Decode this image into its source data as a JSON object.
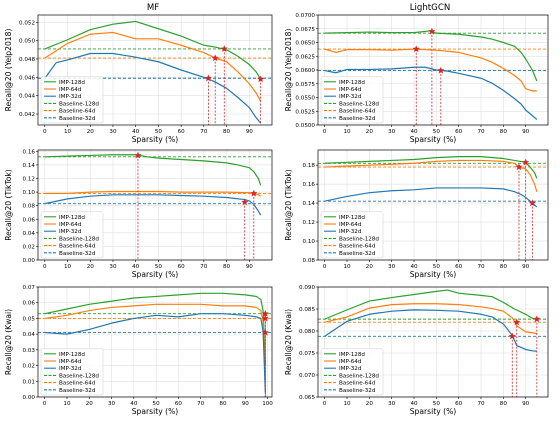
{
  "column_titles": [
    "MF",
    "LightGCN"
  ],
  "colors": {
    "imp128": "#2ca02c",
    "imp64": "#ff7f0e",
    "imp32": "#1f77b4",
    "marker": "#d62728",
    "grid": "#d9d9d9"
  },
  "chart_data": [
    {
      "type": "line",
      "column": "MF",
      "row": 0,
      "xlabel": "Sparsity (%)",
      "ylabel": "Recall@20 (Yelp2018)",
      "xlim": [
        -3,
        100
      ],
      "ylim": [
        0.0408,
        0.0528
      ],
      "xticks": [
        0,
        10,
        20,
        30,
        40,
        50,
        60,
        70,
        80,
        90
      ],
      "yticks": [
        0.042,
        0.044,
        0.046,
        0.048,
        0.05,
        0.052
      ],
      "yticklabels": [
        "0.042",
        "0.044",
        "0.046",
        "0.048",
        "0.050",
        "0.052"
      ],
      "legend": "bottom-left",
      "series": [
        {
          "name": "IMP-128d",
          "color": "#2ca02c",
          "x": [
            0,
            10,
            20,
            30,
            40,
            50,
            60,
            70,
            75,
            80,
            85,
            90,
            93,
            95
          ],
          "y": [
            0.0491,
            0.0501,
            0.0512,
            0.0518,
            0.0521,
            0.0513,
            0.0505,
            0.0495,
            0.0493,
            0.049,
            0.0483,
            0.0474,
            0.0466,
            0.0458
          ]
        },
        {
          "name": "IMP-64d",
          "color": "#ff7f0e",
          "x": [
            0,
            10,
            20,
            30,
            40,
            50,
            60,
            70,
            75,
            80,
            85,
            90,
            93,
            95
          ],
          "y": [
            0.0481,
            0.0497,
            0.0507,
            0.0509,
            0.0502,
            0.0502,
            0.0495,
            0.0487,
            0.0481,
            0.0477,
            0.0466,
            0.0453,
            0.0443,
            0.0434
          ]
        },
        {
          "name": "IMP-32d",
          "color": "#1f77b4",
          "x": [
            0,
            5,
            10,
            20,
            30,
            40,
            50,
            60,
            70,
            75,
            80,
            85,
            90,
            93,
            95
          ],
          "y": [
            0.0459,
            0.0476,
            0.0479,
            0.0486,
            0.0486,
            0.0482,
            0.0477,
            0.0468,
            0.046,
            0.0455,
            0.0448,
            0.0438,
            0.0427,
            0.0416,
            0.041
          ]
        }
      ],
      "baselines": [
        {
          "name": "Baseline-128d",
          "color": "#2ca02c",
          "y": 0.0491
        },
        {
          "name": "Baseline-64d",
          "color": "#ff7f0e",
          "y": 0.0481
        },
        {
          "name": "Baseline-32d",
          "color": "#1f77b4",
          "y": 0.0459
        }
      ],
      "markers": [
        {
          "x": 79,
          "y": 0.0491
        },
        {
          "x": 75,
          "y": 0.0481
        },
        {
          "x": 72,
          "y": 0.0459
        },
        {
          "x": 95,
          "y": 0.0458
        }
      ]
    },
    {
      "type": "line",
      "column": "LightGCN",
      "row": 0,
      "xlabel": "Sparsity (%)",
      "ylabel": "Recall@20 (Yelp2018)",
      "xlim": [
        -3,
        100
      ],
      "ylim": [
        0.05,
        0.07
      ],
      "xticks": [
        0,
        10,
        20,
        30,
        40,
        50,
        60,
        70,
        80,
        90
      ],
      "yticks": [
        0.05,
        0.0525,
        0.055,
        0.0575,
        0.06,
        0.0625,
        0.065,
        0.0675,
        0.07
      ],
      "yticklabels": [
        "0.0500",
        "0.0525",
        "0.0550",
        "0.0575",
        "0.0600",
        "0.0625",
        "0.0650",
        "0.0675",
        "0.0700"
      ],
      "legend": "bottom-left",
      "series": [
        {
          "name": "IMP-128d",
          "color": "#2ca02c",
          "x": [
            0,
            10,
            20,
            30,
            40,
            47,
            50,
            60,
            70,
            75,
            80,
            85,
            88,
            90,
            93,
            95
          ],
          "y": [
            0.0667,
            0.0668,
            0.0669,
            0.0668,
            0.0668,
            0.0671,
            0.0667,
            0.0665,
            0.066,
            0.0656,
            0.065,
            0.0643,
            0.0632,
            0.062,
            0.06,
            0.058
          ]
        },
        {
          "name": "IMP-64d",
          "color": "#ff7f0e",
          "x": [
            0,
            5,
            10,
            20,
            30,
            40,
            50,
            60,
            70,
            75,
            80,
            85,
            88,
            90,
            93,
            95
          ],
          "y": [
            0.0638,
            0.0632,
            0.0637,
            0.0637,
            0.0636,
            0.0638,
            0.0636,
            0.0632,
            0.0622,
            0.0614,
            0.0603,
            0.059,
            0.058,
            0.0566,
            0.0562,
            0.0562
          ]
        },
        {
          "name": "IMP-32d",
          "color": "#1f77b4",
          "x": [
            0,
            5,
            10,
            20,
            30,
            40,
            45,
            50,
            55,
            60,
            70,
            75,
            80,
            85,
            88,
            90,
            93,
            95
          ],
          "y": [
            0.0599,
            0.0595,
            0.0601,
            0.0601,
            0.0602,
            0.0605,
            0.0605,
            0.06,
            0.0598,
            0.0594,
            0.0585,
            0.0576,
            0.0563,
            0.0548,
            0.0538,
            0.0527,
            0.0517,
            0.051
          ]
        }
      ],
      "baselines": [
        {
          "name": "Baseline-128d",
          "color": "#2ca02c",
          "y": 0.0667
        },
        {
          "name": "Baseline-64d",
          "color": "#ff7f0e",
          "y": 0.0638
        },
        {
          "name": "Baseline-32d",
          "color": "#1f77b4",
          "y": 0.0599
        }
      ],
      "markers": [
        {
          "x": 48,
          "y": 0.067
        },
        {
          "x": 41,
          "y": 0.0638
        },
        {
          "x": 52,
          "y": 0.0599
        }
      ]
    },
    {
      "type": "line",
      "column": "MF",
      "row": 1,
      "xlabel": "Sparsity (%)",
      "ylabel": "Recall@20 (TikTok)",
      "xlim": [
        -3,
        100
      ],
      "ylim": [
        0.0,
        0.162
      ],
      "xticks": [
        0,
        10,
        20,
        30,
        40,
        50,
        60,
        70,
        80,
        90
      ],
      "yticks": [
        0.0,
        0.02,
        0.04,
        0.06,
        0.08,
        0.1,
        0.12,
        0.14,
        0.16
      ],
      "yticklabels": [
        "0.00",
        "0.02",
        "0.04",
        "0.06",
        "0.08",
        "0.10",
        "0.12",
        "0.14",
        "0.16"
      ],
      "legend": "bottom-left",
      "series": [
        {
          "name": "IMP-128d",
          "color": "#2ca02c",
          "x": [
            0,
            10,
            20,
            30,
            40,
            45,
            50,
            60,
            70,
            80,
            85,
            90,
            92,
            94,
            95
          ],
          "y": [
            0.152,
            0.153,
            0.154,
            0.155,
            0.155,
            0.152,
            0.15,
            0.148,
            0.146,
            0.143,
            0.14,
            0.136,
            0.13,
            0.12,
            0.11
          ]
        },
        {
          "name": "IMP-64d",
          "color": "#ff7f0e",
          "x": [
            0,
            10,
            20,
            30,
            40,
            50,
            60,
            70,
            80,
            90,
            92,
            94,
            95
          ],
          "y": [
            0.098,
            0.098,
            0.1,
            0.101,
            0.101,
            0.101,
            0.1,
            0.1,
            0.1,
            0.099,
            0.098,
            0.096,
            0.094
          ]
        },
        {
          "name": "IMP-32d",
          "color": "#1f77b4",
          "x": [
            0,
            10,
            20,
            30,
            40,
            50,
            60,
            70,
            80,
            88,
            90,
            92,
            94,
            95
          ],
          "y": [
            0.083,
            0.09,
            0.094,
            0.096,
            0.096,
            0.096,
            0.095,
            0.094,
            0.092,
            0.089,
            0.087,
            0.082,
            0.072,
            0.066
          ]
        }
      ],
      "baselines": [
        {
          "name": "Baseline-128d",
          "color": "#2ca02c",
          "y": 0.152
        },
        {
          "name": "Baseline-64d",
          "color": "#ff7f0e",
          "y": 0.098
        },
        {
          "name": "Baseline-32d",
          "color": "#1f77b4",
          "y": 0.083
        }
      ],
      "markers": [
        {
          "x": 41,
          "y": 0.154
        },
        {
          "x": 92,
          "y": 0.098
        },
        {
          "x": 88,
          "y": 0.085
        }
      ]
    },
    {
      "type": "line",
      "column": "LightGCN",
      "row": 1,
      "xlabel": "Sparsity (%)",
      "ylabel": "Recall@20 (TikTok)",
      "xlim": [
        -3,
        100
      ],
      "ylim": [
        0.08,
        0.196
      ],
      "xticks": [
        0,
        10,
        20,
        30,
        40,
        50,
        60,
        70,
        80,
        90
      ],
      "yticks": [
        0.08,
        0.1,
        0.12,
        0.14,
        0.16,
        0.18
      ],
      "yticklabels": [
        "0.08",
        "0.10",
        "0.12",
        "0.14",
        "0.16",
        "0.18"
      ],
      "legend": "bottom-left",
      "series": [
        {
          "name": "IMP-128d",
          "color": "#2ca02c",
          "x": [
            0,
            10,
            20,
            30,
            40,
            50,
            60,
            70,
            80,
            85,
            90,
            92,
            94,
            95
          ],
          "y": [
            0.182,
            0.183,
            0.184,
            0.185,
            0.186,
            0.188,
            0.189,
            0.189,
            0.187,
            0.185,
            0.183,
            0.178,
            0.172,
            0.166
          ]
        },
        {
          "name": "IMP-64d",
          "color": "#ff7f0e",
          "x": [
            0,
            10,
            20,
            30,
            40,
            50,
            60,
            70,
            80,
            85,
            87,
            90,
            92,
            94,
            95
          ],
          "y": [
            0.178,
            0.179,
            0.18,
            0.181,
            0.182,
            0.184,
            0.185,
            0.185,
            0.184,
            0.182,
            0.178,
            0.176,
            0.17,
            0.16,
            0.152
          ]
        },
        {
          "name": "IMP-32d",
          "color": "#1f77b4",
          "x": [
            0,
            10,
            20,
            30,
            40,
            50,
            60,
            70,
            80,
            85,
            88,
            90,
            92,
            94,
            95
          ],
          "y": [
            0.142,
            0.147,
            0.151,
            0.153,
            0.154,
            0.156,
            0.156,
            0.156,
            0.155,
            0.152,
            0.149,
            0.146,
            0.142,
            0.138,
            0.136
          ]
        }
      ],
      "baselines": [
        {
          "name": "Baseline-128d",
          "color": "#2ca02c",
          "y": 0.182
        },
        {
          "name": "Baseline-64d",
          "color": "#ff7f0e",
          "y": 0.178
        },
        {
          "name": "Baseline-32d",
          "color": "#1f77b4",
          "y": 0.142
        }
      ],
      "markers": [
        {
          "x": 90,
          "y": 0.183
        },
        {
          "x": 87,
          "y": 0.178
        },
        {
          "x": 93,
          "y": 0.14
        }
      ]
    },
    {
      "type": "line",
      "column": "MF",
      "row": 2,
      "xlabel": "Sparsity (%)",
      "ylabel": "Recall@20 (Kwai)",
      "xlim": [
        -3,
        102
      ],
      "ylim": [
        0.0,
        0.07
      ],
      "xticks": [
        0,
        10,
        20,
        30,
        40,
        50,
        60,
        70,
        80,
        90,
        100
      ],
      "yticks": [
        0.0,
        0.01,
        0.02,
        0.03,
        0.04,
        0.05,
        0.06,
        0.07
      ],
      "yticklabels": [
        "0.00",
        "0.01",
        "0.02",
        "0.03",
        "0.04",
        "0.05",
        "0.06",
        "0.07"
      ],
      "legend": "bottom-left",
      "series": [
        {
          "name": "IMP-128d",
          "color": "#2ca02c",
          "x": [
            0,
            10,
            20,
            30,
            40,
            50,
            60,
            70,
            80,
            90,
            95,
            97,
            98,
            99
          ],
          "y": [
            0.053,
            0.056,
            0.059,
            0.061,
            0.063,
            0.064,
            0.065,
            0.066,
            0.066,
            0.065,
            0.064,
            0.062,
            0.055,
            0.02
          ]
        },
        {
          "name": "IMP-64d",
          "color": "#ff7f0e",
          "x": [
            0,
            10,
            20,
            30,
            40,
            50,
            60,
            70,
            80,
            90,
            95,
            97,
            98,
            99
          ],
          "y": [
            0.05,
            0.052,
            0.055,
            0.057,
            0.058,
            0.059,
            0.059,
            0.059,
            0.058,
            0.058,
            0.057,
            0.055,
            0.048,
            0.01
          ]
        },
        {
          "name": "IMP-32d",
          "color": "#1f77b4",
          "x": [
            0,
            10,
            20,
            30,
            40,
            50,
            60,
            70,
            80,
            90,
            95,
            97,
            98,
            99
          ],
          "y": [
            0.041,
            0.04,
            0.043,
            0.047,
            0.05,
            0.052,
            0.051,
            0.053,
            0.053,
            0.052,
            0.051,
            0.05,
            0.042,
            0.003
          ]
        }
      ],
      "baselines": [
        {
          "name": "Baseline-128d",
          "color": "#2ca02c",
          "y": 0.053
        },
        {
          "name": "Baseline-64d",
          "color": "#ff7f0e",
          "y": 0.05
        },
        {
          "name": "Baseline-32d",
          "color": "#1f77b4",
          "y": 0.041
        }
      ],
      "markers": [
        {
          "x": 99,
          "y": 0.053
        },
        {
          "x": 99,
          "y": 0.05
        },
        {
          "x": 99,
          "y": 0.041
        }
      ]
    },
    {
      "type": "line",
      "column": "LightGCN",
      "row": 2,
      "xlabel": "Sparsity (%)",
      "ylabel": "Recall@20 (Kwai)",
      "xlim": [
        -3,
        100
      ],
      "ylim": [
        0.065,
        0.09
      ],
      "xticks": [
        0,
        10,
        20,
        30,
        40,
        50,
        60,
        70,
        80,
        90
      ],
      "yticks": [
        0.065,
        0.07,
        0.075,
        0.08,
        0.085,
        0.09
      ],
      "yticklabels": [
        "0.065",
        "0.070",
        "0.075",
        "0.080",
        "0.085",
        "0.090"
      ],
      "legend": "bottom-left",
      "series": [
        {
          "name": "IMP-128d",
          "color": "#2ca02c",
          "x": [
            0,
            10,
            20,
            30,
            40,
            50,
            55,
            60,
            70,
            75,
            80,
            85,
            90,
            93,
            95
          ],
          "y": [
            0.0827,
            0.0848,
            0.0868,
            0.0876,
            0.0883,
            0.089,
            0.0893,
            0.0886,
            0.0881,
            0.0878,
            0.0865,
            0.085,
            0.0838,
            0.0829,
            0.0826
          ]
        },
        {
          "name": "IMP-64d",
          "color": "#ff7f0e",
          "x": [
            0,
            10,
            20,
            30,
            40,
            50,
            60,
            70,
            75,
            80,
            84,
            86,
            90,
            93,
            95
          ],
          "y": [
            0.082,
            0.0832,
            0.0852,
            0.086,
            0.0862,
            0.0862,
            0.086,
            0.0855,
            0.0851,
            0.0845,
            0.083,
            0.0812,
            0.0798,
            0.0796,
            0.0794
          ]
        },
        {
          "name": "IMP-32d",
          "color": "#1f77b4",
          "x": [
            0,
            5,
            10,
            20,
            30,
            40,
            50,
            60,
            70,
            75,
            80,
            84,
            86,
            90,
            93,
            95
          ],
          "y": [
            0.0788,
            0.0805,
            0.0822,
            0.0838,
            0.0845,
            0.0848,
            0.0847,
            0.0845,
            0.0838,
            0.0832,
            0.0816,
            0.079,
            0.0767,
            0.0758,
            0.0755,
            0.0754
          ]
        }
      ],
      "baselines": [
        {
          "name": "Baseline-128d",
          "color": "#2ca02c",
          "y": 0.0827
        },
        {
          "name": "Baseline-64d",
          "color": "#ff7f0e",
          "y": 0.082
        },
        {
          "name": "Baseline-32d",
          "color": "#1f77b4",
          "y": 0.0788
        }
      ],
      "markers": [
        {
          "x": 95,
          "y": 0.0827
        },
        {
          "x": 86,
          "y": 0.082
        },
        {
          "x": 84,
          "y": 0.0788
        }
      ]
    }
  ]
}
